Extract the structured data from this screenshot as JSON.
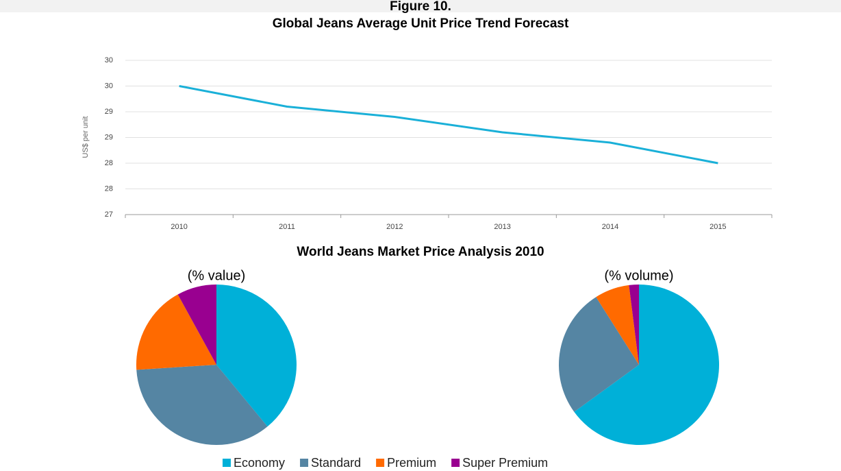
{
  "figure_label": "Figure 10.",
  "chart_data": [
    {
      "type": "line",
      "title": "Global Jeans Average Unit Price Trend Forecast",
      "y_label": "US$ per unit",
      "categories": [
        "2010",
        "2011",
        "2012",
        "2013",
        "2014",
        "2015"
      ],
      "values": [
        29.5,
        29.1,
        28.9,
        28.6,
        28.4,
        28.0
      ],
      "color": "#1ab0d8",
      "ylim": [
        27,
        30
      ],
      "yticks": [
        27,
        {
          "value": 27.5,
          "label": "28"
        },
        28,
        {
          "value": 28.5,
          "label": "29"
        },
        29,
        {
          "value": 29.5,
          "label": "30"
        },
        30
      ],
      "grid": true
    },
    {
      "type": "pie",
      "title": "World Jeans Market Price Analysis 2010",
      "categories": [
        "Economy",
        "Standard",
        "Premium",
        "Super Premium"
      ],
      "colors": [
        "#00b0d8",
        "#5585a3",
        "#ff6a00",
        "#990090"
      ],
      "series": [
        {
          "name": "(% value)",
          "values": [
            39,
            35,
            18,
            8
          ]
        },
        {
          "name": "(% volume)",
          "values": [
            65,
            26,
            7,
            2
          ]
        }
      ],
      "legend": "bottom"
    }
  ]
}
